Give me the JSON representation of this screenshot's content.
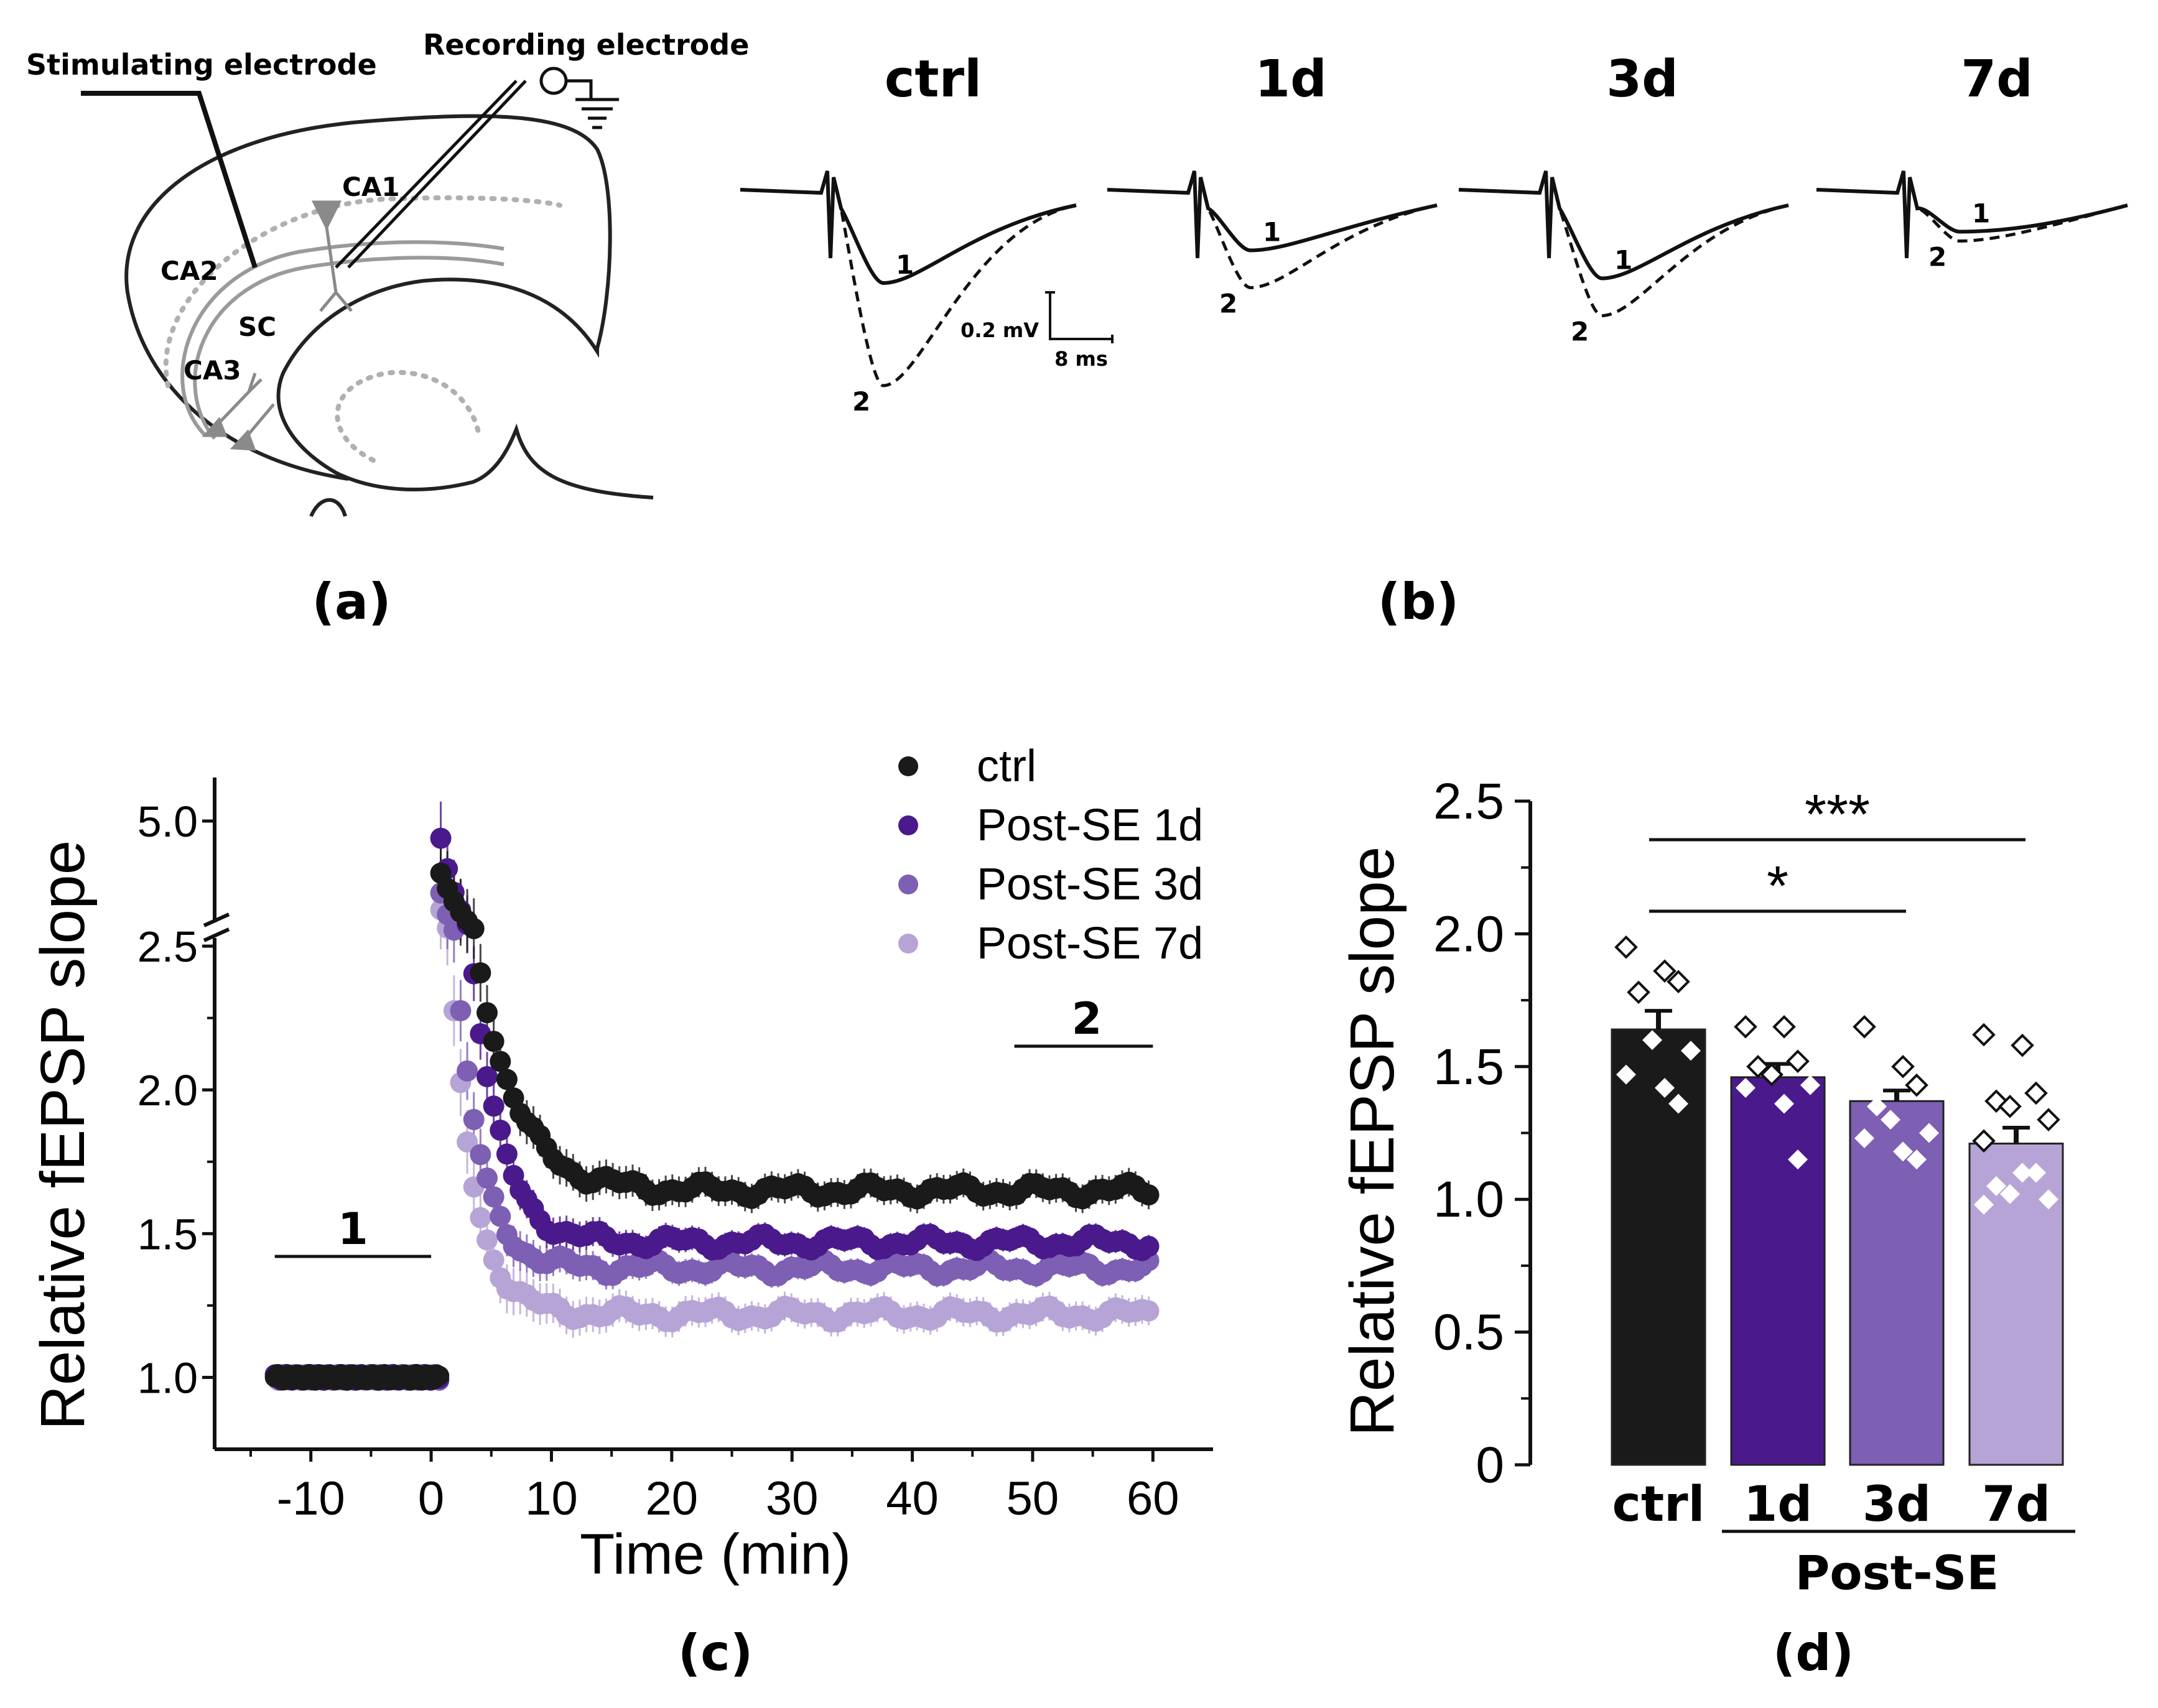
{
  "panels": {
    "a": {
      "label": "(a)",
      "stim_label": "Stimulating electrode",
      "rec_label": "Recording electrode",
      "regions": [
        "CA1",
        "CA2",
        "SC",
        "CA3"
      ]
    },
    "b": {
      "label": "(b)",
      "conditions": [
        "ctrl",
        "1d",
        "3d",
        "7d"
      ],
      "trace_labels": [
        "1",
        "2"
      ],
      "scale_v": "0.2 mV",
      "scale_t": "8 ms",
      "peak_drop_1": [
        1.0,
        0.65,
        0.95,
        0.45
      ],
      "peak_drop_2": [
        2.1,
        1.05,
        1.35,
        0.55
      ]
    },
    "c": {
      "label": "(c)"
    },
    "d": {
      "label": "(d)"
    }
  },
  "colors": {
    "ctrl": "#1a1a1a",
    "d1": "#4a1a8c",
    "d3": "#7d5fb4",
    "d7": "#b7a4d6"
  },
  "chart_data": [
    {
      "type": "scatter",
      "xlabel": "Time (min)",
      "ylabel": "Relative fEPSP slope",
      "x_ticks": [
        "-10",
        "0",
        "10",
        "20",
        "30",
        "40",
        "50",
        "60"
      ],
      "x_tick_values": [
        -10,
        0,
        10,
        20,
        30,
        40,
        50,
        60
      ],
      "y_ticks_lower": [
        "1.0",
        "1.5",
        "2.0",
        "2.5"
      ],
      "y_ticks_upper": [
        "5.0"
      ],
      "xlim": [
        -18,
        65
      ],
      "ylim_lower": [
        0.75,
        2.55
      ],
      "ylim_upper": [
        2.5,
        5.0
      ],
      "axis_break_at": 2.5,
      "baseline_bar": {
        "label": "1",
        "range": [
          -13,
          0
        ]
      },
      "late_bar": {
        "label": "2",
        "range": [
          49,
          60
        ]
      },
      "legend": [
        "ctrl",
        "Post-SE 1d",
        "Post-SE 3d",
        "Post-SE 7d"
      ],
      "series": [
        {
          "name": "ctrl",
          "color_key": "ctrl",
          "baseline": 1.0,
          "peak": 3.8,
          "plateau": 1.65,
          "tau": 3.2,
          "error": 0.05
        },
        {
          "name": "Post-SE 1d",
          "color_key": "d1",
          "baseline": 1.0,
          "peak": 4.6,
          "plateau": 1.47,
          "tau": 2.3,
          "error": 0.04
        },
        {
          "name": "Post-SE 3d",
          "color_key": "d3",
          "baseline": 1.0,
          "peak": 3.4,
          "plateau": 1.38,
          "tau": 2.0,
          "error": 0.04
        },
        {
          "name": "Post-SE 7d",
          "color_key": "d7",
          "baseline": 1.0,
          "peak": 3.0,
          "plateau": 1.22,
          "tau": 2.0,
          "error": 0.05
        }
      ]
    },
    {
      "type": "bar",
      "ylabel": "Relative fEPSP slope",
      "ylim": [
        0,
        2.5
      ],
      "y_ticks": [
        "0",
        "0.5",
        "1.0",
        "1.5",
        "2.0",
        "2.5"
      ],
      "y_tick_values": [
        0,
        0.5,
        1.0,
        1.5,
        2.0,
        2.5
      ],
      "categories": [
        "ctrl",
        "1d",
        "3d",
        "7d"
      ],
      "group_label": "Post-SE",
      "values": [
        1.64,
        1.46,
        1.37,
        1.21
      ],
      "errors": [
        0.07,
        0.05,
        0.04,
        0.06
      ],
      "color_keys": [
        "ctrl",
        "d1",
        "d3",
        "d7"
      ],
      "points": [
        [
          1.95,
          1.86,
          1.82,
          1.78,
          1.6,
          1.56,
          1.47,
          1.42,
          1.36
        ],
        [
          1.65,
          1.65,
          1.52,
          1.5,
          1.47,
          1.43,
          1.42,
          1.36,
          1.15
        ],
        [
          1.65,
          1.5,
          1.43,
          1.35,
          1.3,
          1.25,
          1.23,
          1.18,
          1.15
        ],
        [
          1.62,
          1.58,
          1.4,
          1.37,
          1.35,
          1.3,
          1.22,
          1.1,
          1.1,
          1.05,
          1.02,
          1.0,
          0.98
        ]
      ],
      "significance": [
        {
          "label": "***",
          "from": "ctrl",
          "to": "7d"
        },
        {
          "label": "*",
          "from": "ctrl",
          "to": "3d"
        }
      ]
    }
  ]
}
